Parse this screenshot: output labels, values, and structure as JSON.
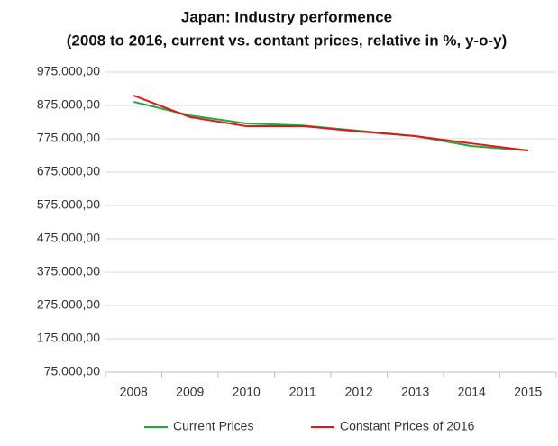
{
  "chart_data": {
    "type": "line",
    "title": "Japan:  Industry performence",
    "subtitle": "(2008 to 2016, current vs. contant prices, relative in %, y-o-y)",
    "categories": [
      "2008",
      "2009",
      "2010",
      "2011",
      "2012",
      "2013",
      "2014",
      "2015"
    ],
    "series": [
      {
        "name": "Current Prices",
        "color": "#1faa3c",
        "values": [
          886000,
          845000,
          821000,
          815000,
          799000,
          783000,
          753000,
          740000
        ]
      },
      {
        "name": "Constant Prices of 2016",
        "color": "#e8141c",
        "values": [
          905000,
          840000,
          813000,
          813000,
          797000,
          783000,
          761000,
          740000
        ]
      }
    ],
    "ylim": [
      75000,
      975000
    ],
    "yticks": [
      {
        "value": 75000,
        "label": "75.000,00"
      },
      {
        "value": 175000,
        "label": "175.000,00"
      },
      {
        "value": 275000,
        "label": "275.000,00"
      },
      {
        "value": 375000,
        "label": "375.000,00"
      },
      {
        "value": 475000,
        "label": "475.000,00"
      },
      {
        "value": 575000,
        "label": "575.000,00"
      },
      {
        "value": 675000,
        "label": "675.000,00"
      },
      {
        "value": 775000,
        "label": "775.000,00"
      },
      {
        "value": 875000,
        "label": "875.000,00"
      },
      {
        "value": 975000,
        "label": "975.000,00"
      }
    ],
    "grid": true,
    "legend": "bottom"
  }
}
